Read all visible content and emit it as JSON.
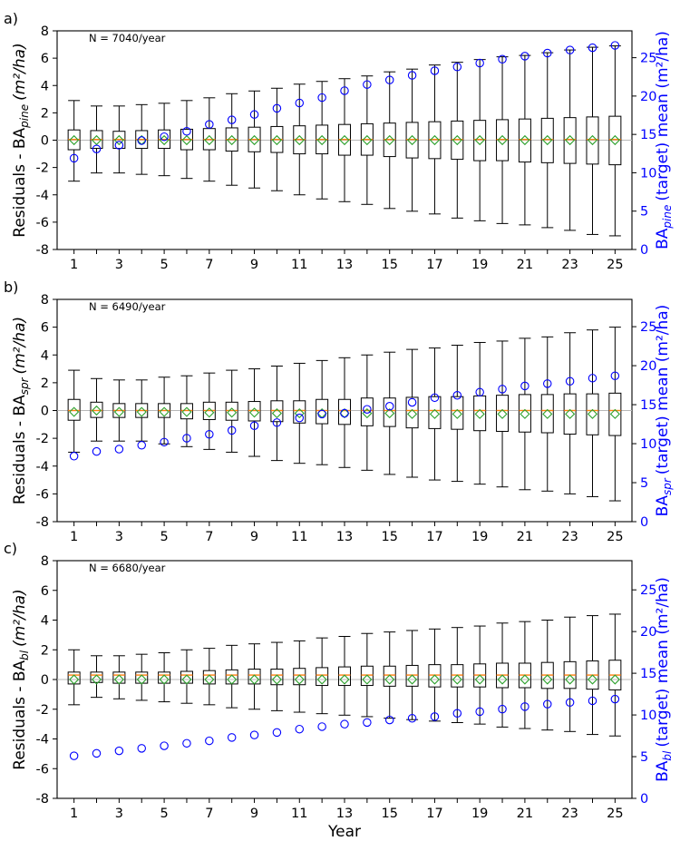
{
  "chart_data": [
    {
      "type": "box",
      "panel_label": "a)",
      "annotation": "N = 7040/year",
      "ylabel_prefix": "Residuals - BA",
      "ylabel_sub": "pine",
      "ylabel_units": "(m²/ha)",
      "ylabel_right_prefix": "BA",
      "ylabel_right_sub": "pine",
      "ylabel_right_suffix": "(target)  mean (m²/ha)",
      "ylim": [
        -8,
        8
      ],
      "yticks": [
        -8,
        -6,
        -4,
        -2,
        0,
        2,
        4,
        6,
        8
      ],
      "y2lim": [
        0,
        28.5
      ],
      "y2ticks": [
        0,
        5,
        10,
        15,
        20,
        25
      ],
      "xticks": [
        1,
        3,
        5,
        7,
        9,
        11,
        13,
        15,
        17,
        19,
        21,
        23,
        25
      ],
      "years": [
        1,
        2,
        3,
        4,
        5,
        6,
        7,
        8,
        9,
        10,
        11,
        12,
        13,
        14,
        15,
        16,
        17,
        18,
        19,
        20,
        21,
        22,
        23,
        24,
        25
      ],
      "whisker_low": [
        -3.0,
        -2.4,
        -2.4,
        -2.5,
        -2.6,
        -2.8,
        -3.0,
        -3.3,
        -3.5,
        -3.7,
        -4.0,
        -4.3,
        -4.5,
        -4.7,
        -5.0,
        -5.2,
        -5.4,
        -5.7,
        -5.9,
        -6.1,
        -6.2,
        -6.4,
        -6.6,
        -6.9,
        -7.0
      ],
      "q1": [
        -0.7,
        -0.6,
        -0.6,
        -0.6,
        -0.6,
        -0.7,
        -0.7,
        -0.8,
        -0.85,
        -0.9,
        -1.0,
        -1.0,
        -1.1,
        -1.1,
        -1.2,
        -1.3,
        -1.35,
        -1.4,
        -1.5,
        -1.5,
        -1.6,
        -1.65,
        -1.7,
        -1.75,
        -1.8
      ],
      "median": [
        0.05,
        0.05,
        0.05,
        0.05,
        0.05,
        0.05,
        0.05,
        0.05,
        0.05,
        0.05,
        0.05,
        0.05,
        0.05,
        0.05,
        0.05,
        0.05,
        0.05,
        0.05,
        0.05,
        0.05,
        0.05,
        0.05,
        0.05,
        0.05,
        0.05
      ],
      "q3": [
        0.75,
        0.7,
        0.65,
        0.7,
        0.75,
        0.8,
        0.85,
        0.9,
        0.95,
        1.0,
        1.05,
        1.1,
        1.15,
        1.2,
        1.25,
        1.3,
        1.35,
        1.4,
        1.45,
        1.5,
        1.55,
        1.6,
        1.65,
        1.7,
        1.75
      ],
      "whisker_high": [
        2.9,
        2.5,
        2.5,
        2.6,
        2.7,
        2.9,
        3.1,
        3.4,
        3.6,
        3.8,
        4.1,
        4.3,
        4.5,
        4.7,
        5.0,
        5.2,
        5.5,
        5.7,
        5.9,
        6.1,
        6.2,
        6.4,
        6.6,
        6.8,
        6.9
      ],
      "mean_residual": [
        0,
        0,
        0,
        0,
        0,
        0,
        0,
        0,
        0,
        0,
        0,
        0,
        0,
        0,
        0,
        0,
        0,
        0,
        0,
        0,
        0,
        0,
        0,
        0,
        0
      ],
      "target_mean": [
        11.9,
        13.1,
        13.6,
        14.2,
        14.7,
        15.4,
        16.3,
        16.9,
        17.6,
        18.4,
        19.1,
        19.8,
        20.7,
        21.5,
        22.1,
        22.7,
        23.3,
        23.8,
        24.3,
        24.8,
        25.2,
        25.6,
        26.0,
        26.3,
        26.6
      ]
    },
    {
      "type": "box",
      "panel_label": "b)",
      "annotation": "N = 6490/year",
      "ylabel_prefix": "Residuals - BA",
      "ylabel_sub": "spr",
      "ylabel_units": "(m²/ha)",
      "ylabel_right_prefix": "BA",
      "ylabel_right_sub": "spr",
      "ylabel_right_suffix": "(target)  mean (m²/ha)",
      "ylim": [
        -8,
        8
      ],
      "yticks": [
        -8,
        -6,
        -4,
        -2,
        0,
        2,
        4,
        6,
        8
      ],
      "y2lim": [
        0,
        28.5
      ],
      "y2ticks": [
        0,
        5,
        10,
        15,
        20,
        25
      ],
      "xticks": [
        1,
        3,
        5,
        7,
        9,
        11,
        13,
        15,
        17,
        19,
        21,
        23,
        25
      ],
      "years": [
        1,
        2,
        3,
        4,
        5,
        6,
        7,
        8,
        9,
        10,
        11,
        12,
        13,
        14,
        15,
        16,
        17,
        18,
        19,
        20,
        21,
        22,
        23,
        24,
        25
      ],
      "whisker_low": [
        -3.0,
        -2.2,
        -2.2,
        -2.2,
        -2.4,
        -2.6,
        -2.8,
        -3.0,
        -3.3,
        -3.6,
        -3.8,
        -3.9,
        -4.1,
        -4.3,
        -4.6,
        -4.8,
        -5.0,
        -5.1,
        -5.3,
        -5.5,
        -5.7,
        -5.8,
        -6.0,
        -6.2,
        -6.5
      ],
      "q1": [
        -0.7,
        -0.5,
        -0.5,
        -0.5,
        -0.5,
        -0.6,
        -0.65,
        -0.7,
        -0.75,
        -0.8,
        -0.9,
        -0.95,
        -1.0,
        -1.1,
        -1.15,
        -1.25,
        -1.3,
        -1.35,
        -1.45,
        -1.5,
        -1.55,
        -1.6,
        -1.7,
        -1.75,
        -1.8
      ],
      "median": [
        0,
        0,
        0,
        0,
        0,
        0,
        0,
        0,
        0,
        0,
        0,
        0,
        0,
        0,
        0,
        0,
        0,
        0,
        0,
        0,
        0,
        0,
        0,
        0,
        0
      ],
      "q3": [
        0.8,
        0.6,
        0.5,
        0.5,
        0.5,
        0.5,
        0.6,
        0.6,
        0.65,
        0.7,
        0.7,
        0.8,
        0.8,
        0.9,
        0.9,
        0.95,
        1.0,
        1.0,
        1.05,
        1.1,
        1.15,
        1.15,
        1.2,
        1.2,
        1.25
      ],
      "whisker_high": [
        2.9,
        2.3,
        2.2,
        2.2,
        2.4,
        2.5,
        2.7,
        2.9,
        3.0,
        3.2,
        3.4,
        3.6,
        3.8,
        4.0,
        4.2,
        4.4,
        4.5,
        4.7,
        4.9,
        5.0,
        5.2,
        5.3,
        5.6,
        5.8,
        6.0
      ],
      "mean_residual": [
        -0.1,
        0,
        -0.1,
        -0.1,
        -0.1,
        -0.1,
        -0.15,
        -0.15,
        -0.15,
        -0.2,
        -0.2,
        -0.2,
        -0.2,
        -0.2,
        -0.2,
        -0.25,
        -0.25,
        -0.25,
        -0.25,
        -0.25,
        -0.25,
        -0.25,
        -0.25,
        -0.25,
        -0.25
      ],
      "target_mean": [
        8.4,
        9.0,
        9.3,
        9.8,
        10.2,
        10.7,
        11.2,
        11.7,
        12.3,
        12.7,
        13.3,
        13.8,
        13.9,
        14.4,
        14.8,
        15.3,
        15.9,
        16.2,
        16.6,
        17.0,
        17.4,
        17.7,
        18.0,
        18.4,
        18.7
      ]
    },
    {
      "type": "box",
      "panel_label": "c)",
      "annotation": "N = 6680/year",
      "ylabel_prefix": "Residuals - BA",
      "ylabel_sub": "bl",
      "ylabel_units": "(m²/ha)",
      "ylabel_right_prefix": "BA",
      "ylabel_right_sub": "bl",
      "ylabel_right_suffix": "(target)  mean (m²/ha)",
      "xlabel": "Year",
      "ylim": [
        -8,
        8
      ],
      "yticks": [
        -8,
        -6,
        -4,
        -2,
        0,
        2,
        4,
        6,
        8
      ],
      "y2lim": [
        0,
        28.5
      ],
      "y2ticks": [
        0,
        5,
        10,
        15,
        20,
        25
      ],
      "xticks": [
        1,
        3,
        5,
        7,
        9,
        11,
        13,
        15,
        17,
        19,
        21,
        23,
        25
      ],
      "years": [
        1,
        2,
        3,
        4,
        5,
        6,
        7,
        8,
        9,
        10,
        11,
        12,
        13,
        14,
        15,
        16,
        17,
        18,
        19,
        20,
        21,
        22,
        23,
        24,
        25
      ],
      "whisker_low": [
        -1.7,
        -1.2,
        -1.3,
        -1.4,
        -1.5,
        -1.6,
        -1.7,
        -1.9,
        -2.0,
        -2.1,
        -2.2,
        -2.3,
        -2.4,
        -2.5,
        -2.6,
        -2.7,
        -2.8,
        -2.9,
        -3.0,
        -3.2,
        -3.3,
        -3.4,
        -3.5,
        -3.7,
        -3.8
      ],
      "q1": [
        -0.3,
        -0.2,
        -0.25,
        -0.25,
        -0.25,
        -0.25,
        -0.3,
        -0.3,
        -0.3,
        -0.35,
        -0.35,
        -0.4,
        -0.4,
        -0.4,
        -0.45,
        -0.45,
        -0.5,
        -0.5,
        -0.5,
        -0.55,
        -0.55,
        -0.6,
        -0.6,
        -0.65,
        -0.7
      ],
      "median": [
        0.3,
        0.3,
        0.3,
        0.3,
        0.3,
        0.3,
        0.3,
        0.3,
        0.3,
        0.3,
        0.3,
        0.3,
        0.3,
        0.3,
        0.3,
        0.3,
        0.3,
        0.3,
        0.3,
        0.3,
        0.3,
        0.3,
        0.3,
        0.3,
        0.3
      ],
      "q3": [
        0.5,
        0.5,
        0.5,
        0.5,
        0.5,
        0.55,
        0.6,
        0.65,
        0.7,
        0.7,
        0.75,
        0.8,
        0.85,
        0.9,
        0.9,
        0.95,
        1.0,
        1.0,
        1.05,
        1.1,
        1.1,
        1.15,
        1.2,
        1.25,
        1.3
      ],
      "whisker_high": [
        2.0,
        1.6,
        1.6,
        1.7,
        1.8,
        2.0,
        2.1,
        2.3,
        2.4,
        2.5,
        2.6,
        2.8,
        2.9,
        3.1,
        3.2,
        3.3,
        3.4,
        3.5,
        3.6,
        3.8,
        3.9,
        4.0,
        4.2,
        4.3,
        4.4
      ],
      "mean_residual": [
        0,
        0,
        0,
        0,
        0,
        0,
        0,
        0,
        0,
        0,
        0,
        0,
        0,
        0,
        0,
        0,
        0,
        0,
        0,
        0,
        0,
        0,
        0,
        0,
        0
      ],
      "target_mean": [
        5.1,
        5.4,
        5.7,
        6.0,
        6.3,
        6.6,
        6.9,
        7.3,
        7.6,
        7.9,
        8.3,
        8.6,
        8.9,
        9.1,
        9.4,
        9.6,
        9.8,
        10.2,
        10.4,
        10.7,
        11.0,
        11.3,
        11.5,
        11.7,
        11.9
      ]
    }
  ]
}
